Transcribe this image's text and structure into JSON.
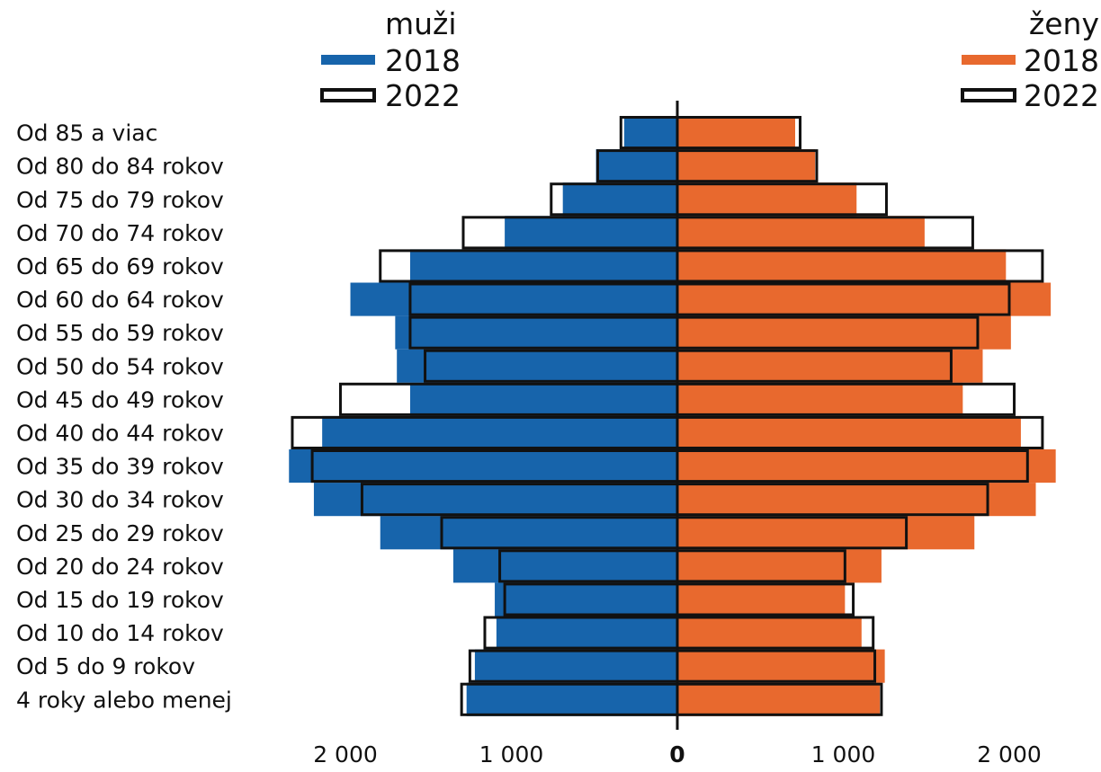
{
  "chart_data": {
    "type": "bar",
    "orientation": "horizontal",
    "subtype": "population-pyramid",
    "categories": [
      "Od 85 a viac",
      "Od 80 do 84 rokov",
      "Od 75 do 79 rokov",
      "Od 70 do 74 rokov",
      "Od 65 do 69 rokov",
      "Od 60 do 64 rokov",
      "Od 55 do 59 rokov",
      "Od 50 do 54 rokov",
      "Od 45 do 49 rokov",
      "Od 40 do 44 rokov",
      "Od 35 do 39 rokov",
      "Od 30 do 34 rokov",
      "Od 25 do 29 rokov",
      "Od 20 do 24 rokov",
      "Od 15 do 19 rokov",
      "Od 10 do 14 rokov",
      "Od 5 do 9 rokov",
      "4 roky alebo menej"
    ],
    "legend": {
      "men": {
        "title": "muži",
        "placement": "top-left",
        "entries": [
          "2018",
          "2022"
        ]
      },
      "women": {
        "title": "ženy",
        "placement": "top-right",
        "entries": [
          "2018",
          "2022"
        ]
      }
    },
    "series": [
      {
        "name": "2018",
        "side": "muži",
        "style": "filled",
        "color": "#1764ab",
        "values": [
          320,
          490,
          690,
          1040,
          1610,
          1970,
          1700,
          1690,
          1610,
          2140,
          2340,
          2190,
          1790,
          1350,
          1100,
          1090,
          1220,
          1270
        ]
      },
      {
        "name": "2022",
        "side": "muži",
        "style": "outline",
        "color": "#000000",
        "values": [
          340,
          480,
          760,
          1290,
          1790,
          1610,
          1610,
          1520,
          2030,
          2320,
          2200,
          1900,
          1420,
          1070,
          1040,
          1160,
          1250,
          1300
        ]
      },
      {
        "name": "2018",
        "side": "ženy",
        "style": "filled",
        "color": "#e8692e",
        "values": [
          710,
          830,
          1080,
          1490,
          1980,
          2250,
          2010,
          1840,
          1720,
          2070,
          2280,
          2160,
          1790,
          1230,
          1010,
          1110,
          1250,
          1220
        ]
      },
      {
        "name": "2022",
        "side": "ženy",
        "style": "outline",
        "color": "#000000",
        "values": [
          740,
          840,
          1260,
          1780,
          2200,
          2000,
          1810,
          1650,
          2030,
          2200,
          2110,
          1870,
          1380,
          1010,
          1060,
          1180,
          1190,
          1230
        ]
      }
    ],
    "x_ticks": [
      {
        "value": -2000,
        "label": "2 000"
      },
      {
        "value": -1000,
        "label": "1 000"
      },
      {
        "value": 0,
        "label": "0"
      },
      {
        "value": 1000,
        "label": "1 000"
      },
      {
        "value": 2000,
        "label": "2 000"
      }
    ],
    "xlim": [
      -2350,
      2350
    ],
    "grid": false
  }
}
